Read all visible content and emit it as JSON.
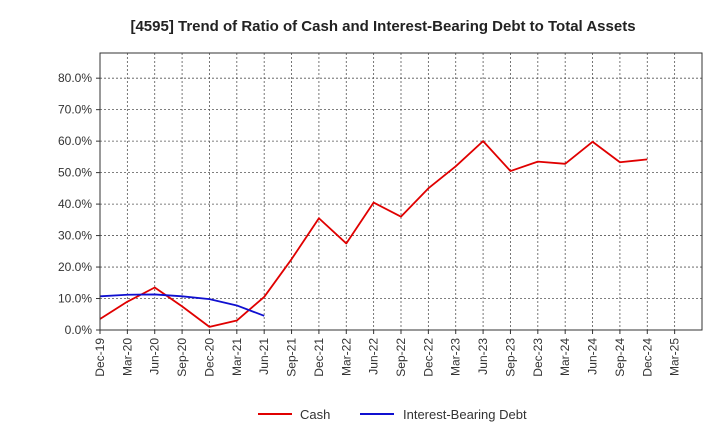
{
  "chart_data": {
    "type": "line",
    "title": "[4595]  Trend of Ratio of Cash and Interest-Bearing Debt to Total Assets",
    "xlabel": "",
    "ylabel": "",
    "categories": [
      "Dec-19",
      "Mar-20",
      "Jun-20",
      "Sep-20",
      "Dec-20",
      "Mar-21",
      "Jun-21",
      "Sep-21",
      "Dec-21",
      "Mar-22",
      "Jun-22",
      "Sep-22",
      "Dec-22",
      "Mar-23",
      "Jun-23",
      "Sep-23",
      "Dec-23",
      "Mar-24",
      "Jun-24",
      "Sep-24",
      "Dec-24",
      "Mar-25"
    ],
    "ylim": [
      0,
      0.88
    ],
    "y_ticks": [
      0,
      0.1,
      0.2,
      0.3,
      0.4,
      0.5,
      0.6,
      0.7,
      0.8
    ],
    "y_tick_labels": [
      "0.0%",
      "10.0%",
      "20.0%",
      "30.0%",
      "40.0%",
      "50.0%",
      "60.0%",
      "70.0%",
      "80.0%"
    ],
    "grid": true,
    "legend_position": "bottom-center",
    "series": [
      {
        "name": "Cash",
        "color": "#e00000",
        "values": [
          0.035,
          0.09,
          0.135,
          0.075,
          0.01,
          0.03,
          0.105,
          0.225,
          0.355,
          0.275,
          0.405,
          0.36,
          0.45,
          0.52,
          0.6,
          0.505,
          0.535,
          0.528,
          0.598,
          0.533,
          0.542,
          null
        ]
      },
      {
        "name": "Interest-Bearing Debt",
        "color": "#1010d0",
        "values": [
          0.107,
          0.112,
          0.113,
          0.107,
          0.098,
          0.078,
          0.045,
          null,
          null,
          null,
          null,
          null,
          null,
          null,
          null,
          null,
          null,
          null,
          null,
          null,
          null,
          null
        ]
      }
    ]
  }
}
